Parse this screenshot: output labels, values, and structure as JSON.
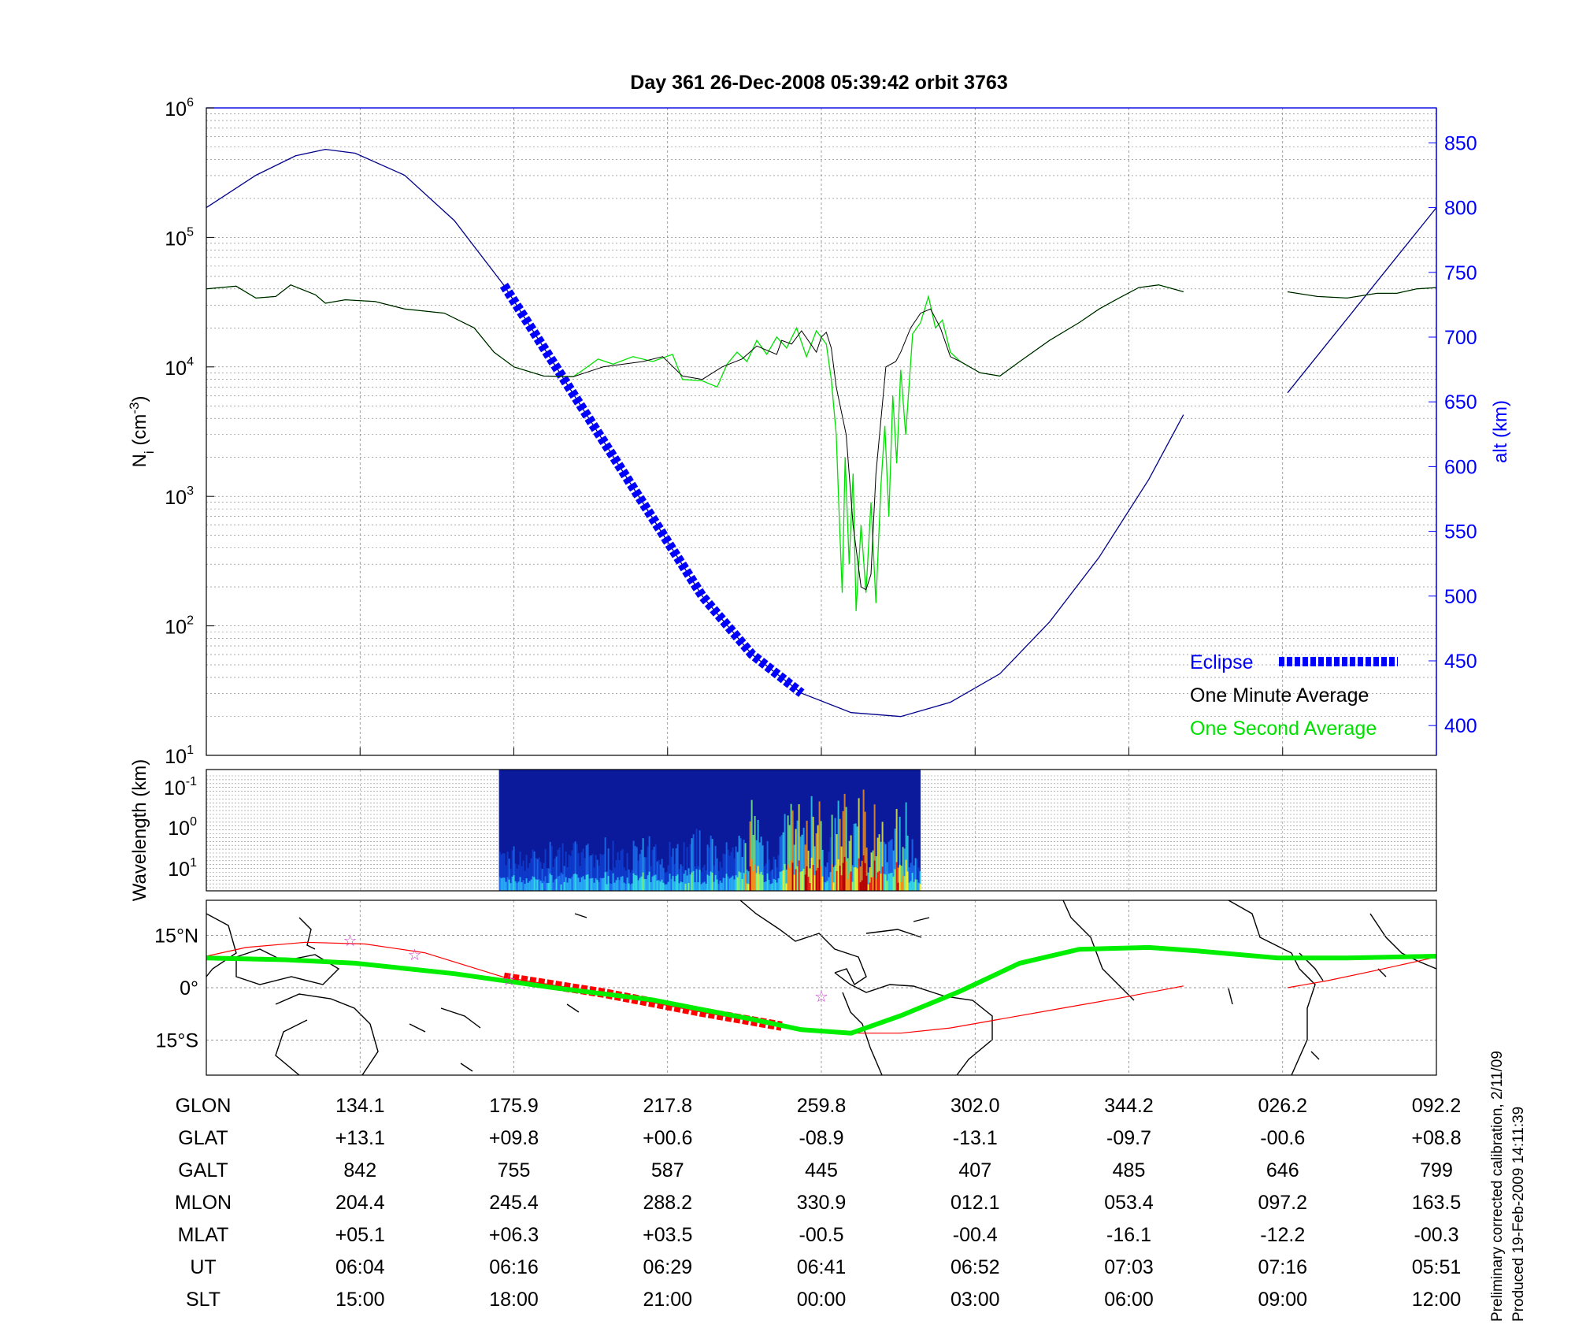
{
  "title": "Day 361  26-Dec-2008 05:39:42   orbit 3763",
  "colors": {
    "eclipse": "#0000ff",
    "alt_line": "#00008b",
    "minute_avg": "#000000",
    "second_avg": "#00e000",
    "track_red": "#ff0000",
    "magnetic_track": "#00ee00",
    "star": "#cc44cc"
  },
  "chart_data": [
    {
      "type": "line",
      "name": "density",
      "ylabel": "N_i (cm^-3)",
      "ylabel_main": "N",
      "ylabel_sub": "i",
      "ylabel_unit": " (cm",
      "ylabel_exp": "-3",
      "ylabel_close": ")",
      "y2label": "alt (km)",
      "yscale": "log",
      "ylim": [
        10,
        1000000
      ],
      "yticks_base": "10",
      "yticks_exp": [
        "1",
        "2",
        "3",
        "4",
        "5",
        "6"
      ],
      "y2lim": [
        377,
        877
      ],
      "y2ticks": [
        "400",
        "450",
        "500",
        "550",
        "600",
        "650",
        "700",
        "750",
        "800",
        "850"
      ],
      "x_ticks_count": 9,
      "grid": true,
      "legend_position": "bottom-right",
      "legend": [
        {
          "label": "Eclipse",
          "color": "#0000ff",
          "style": "dashed-thick"
        },
        {
          "label": "One Minute Average",
          "color": "#000000",
          "style": "none"
        },
        {
          "label": "One Second Average",
          "color": "#00e000",
          "style": "none"
        }
      ],
      "series": [
        {
          "name": "One Minute Average",
          "points": [
            [
              0,
              40000
            ],
            [
              0.03,
              42000
            ],
            [
              0.05,
              34000
            ],
            [
              0.07,
              35000
            ],
            [
              0.085,
              43000
            ],
            [
              0.11,
              36000
            ],
            [
              0.12,
              31000
            ],
            [
              0.14,
              33000
            ],
            [
              0.17,
              32000
            ],
            [
              0.2,
              28000
            ],
            [
              0.24,
              26000
            ],
            [
              0.27,
              20000
            ],
            [
              0.29,
              13000
            ],
            [
              0.31,
              10000
            ],
            [
              0.34,
              8500
            ],
            [
              0.37,
              8400
            ],
            [
              0.4,
              10000
            ],
            [
              0.44,
              11000
            ],
            [
              0.46,
              12000
            ],
            [
              0.48,
              8500
            ],
            [
              0.5,
              8000
            ],
            [
              0.52,
              10000
            ],
            [
              0.54,
              11500
            ],
            [
              0.555,
              14500
            ],
            [
              0.575,
              12500
            ],
            [
              0.58,
              16000
            ],
            [
              0.59,
              15000
            ],
            [
              0.6,
              19000
            ],
            [
              0.615,
              13000
            ],
            [
              0.62,
              17000
            ],
            [
              0.625,
              18500
            ],
            [
              0.63,
              14000
            ],
            [
              0.635,
              7000
            ],
            [
              0.645,
              3000
            ],
            [
              0.652,
              600
            ],
            [
              0.66,
              200
            ],
            [
              0.665,
              190
            ],
            [
              0.67,
              250
            ],
            [
              0.675,
              1500
            ],
            [
              0.685,
              10000
            ],
            [
              0.695,
              11000
            ],
            [
              0.7,
              13000
            ],
            [
              0.71,
              20000
            ],
            [
              0.72,
              26000
            ],
            [
              0.73,
              28000
            ],
            [
              0.74,
              20000
            ],
            [
              0.75,
              12000
            ],
            [
              0.76,
              11000
            ],
            [
              0.78,
              9000
            ],
            [
              0.8,
              8500
            ],
            [
              0.82,
              11000
            ],
            [
              0.85,
              16000
            ],
            [
              0.88,
              22000
            ],
            [
              0.9,
              28000
            ],
            [
              0.92,
              34000
            ],
            [
              0.94,
              41000
            ],
            [
              0.96,
              43000
            ],
            [
              0.98,
              39000
            ],
            [
              0.985,
              38000
            ]
          ],
          "gap_after_x": 0.985,
          "points2": [
            [
              1.09,
              38000
            ],
            [
              1.12,
              35000
            ],
            [
              1.15,
              34000
            ],
            [
              1.18,
              37000
            ],
            [
              1.2,
              37000
            ],
            [
              1.22,
              40000
            ],
            [
              1.24,
              41000
            ]
          ]
        },
        {
          "name": "One Second Average",
          "points": [
            [
              0,
              40000
            ],
            [
              0.03,
              42000
            ],
            [
              0.05,
              34000
            ],
            [
              0.07,
              35000
            ],
            [
              0.085,
              43000
            ],
            [
              0.11,
              36000
            ],
            [
              0.12,
              31000
            ],
            [
              0.14,
              33000
            ],
            [
              0.17,
              32000
            ],
            [
              0.2,
              28000
            ],
            [
              0.24,
              26000
            ],
            [
              0.27,
              20000
            ],
            [
              0.29,
              13000
            ],
            [
              0.31,
              10000
            ],
            [
              0.34,
              8500
            ],
            [
              0.37,
              8400
            ],
            [
              0.38,
              9500
            ],
            [
              0.395,
              11500
            ],
            [
              0.41,
              10500
            ],
            [
              0.43,
              12000
            ],
            [
              0.45,
              11000
            ],
            [
              0.47,
              12500
            ],
            [
              0.48,
              8000
            ],
            [
              0.5,
              7800
            ],
            [
              0.515,
              7000
            ],
            [
              0.525,
              10500
            ],
            [
              0.535,
              13000
            ],
            [
              0.545,
              11000
            ],
            [
              0.555,
              16000
            ],
            [
              0.565,
              12500
            ],
            [
              0.575,
              17000
            ],
            [
              0.585,
              14000
            ],
            [
              0.595,
              20000
            ],
            [
              0.605,
              12000
            ],
            [
              0.615,
              19000
            ],
            [
              0.625,
              15000
            ],
            [
              0.63,
              8000
            ],
            [
              0.635,
              3000
            ],
            [
              0.638,
              700
            ],
            [
              0.641,
              180
            ],
            [
              0.644,
              2000
            ],
            [
              0.648,
              300
            ],
            [
              0.652,
              1500
            ],
            [
              0.655,
              130
            ],
            [
              0.66,
              600
            ],
            [
              0.665,
              180
            ],
            [
              0.67,
              900
            ],
            [
              0.675,
              150
            ],
            [
              0.68,
              1200
            ],
            [
              0.684,
              3500
            ],
            [
              0.688,
              700
            ],
            [
              0.692,
              6000
            ],
            [
              0.696,
              1800
            ],
            [
              0.7,
              9500
            ],
            [
              0.705,
              3000
            ],
            [
              0.712,
              18000
            ],
            [
              0.72,
              22000
            ],
            [
              0.728,
              35000
            ],
            [
              0.735,
              20000
            ],
            [
              0.742,
              23000
            ],
            [
              0.75,
              13000
            ],
            [
              0.76,
              11000
            ],
            [
              0.78,
              9000
            ],
            [
              0.8,
              8500
            ],
            [
              0.82,
              11000
            ],
            [
              0.85,
              16000
            ],
            [
              0.88,
              22000
            ],
            [
              0.9,
              28000
            ],
            [
              0.92,
              34000
            ],
            [
              0.94,
              41000
            ],
            [
              0.96,
              43000
            ],
            [
              0.98,
              39000
            ],
            [
              0.985,
              38000
            ]
          ],
          "gap_after_x": 0.985,
          "points2": [
            [
              1.09,
              38000
            ],
            [
              1.12,
              35000
            ],
            [
              1.15,
              34000
            ],
            [
              1.18,
              37000
            ],
            [
              1.2,
              37000
            ],
            [
              1.22,
              40000
            ],
            [
              1.24,
              41000
            ]
          ]
        },
        {
          "name": "alt",
          "axis": "right",
          "points": [
            [
              0,
              800
            ],
            [
              0.05,
              825
            ],
            [
              0.09,
              840
            ],
            [
              0.12,
              845
            ],
            [
              0.15,
              842
            ],
            [
              0.2,
              825
            ],
            [
              0.25,
              790
            ],
            [
              0.3,
              740
            ],
            [
              0.35,
              680
            ],
            [
              0.4,
              620
            ],
            [
              0.45,
              560
            ],
            [
              0.5,
              500
            ],
            [
              0.55,
              455
            ],
            [
              0.6,
              425
            ],
            [
              0.65,
              410
            ],
            [
              0.7,
              407
            ],
            [
              0.75,
              418
            ],
            [
              0.8,
              440
            ],
            [
              0.85,
              480
            ],
            [
              0.9,
              530
            ],
            [
              0.95,
              590
            ],
            [
              0.985,
              640
            ]
          ],
          "eclipse_from": 0.3,
          "eclipse_to": 0.62
        }
      ]
    },
    {
      "type": "heatmap",
      "name": "spectrogram",
      "ylabel": "Wavelength (km)",
      "yticks_base": "10",
      "yticks_exp": [
        "-1",
        "0",
        "1"
      ],
      "data_from": 0.295,
      "data_to": 0.72
    },
    {
      "type": "line",
      "name": "ground-track",
      "yticks": [
        "15°N",
        "0°",
        "15°S"
      ],
      "ylim": [
        -25,
        25
      ],
      "series": [
        {
          "name": "geographic track",
          "color": "#ff0000",
          "points": [
            [
              0,
              9
            ],
            [
              0.04,
              11.5
            ],
            [
              0.1,
              13
            ],
            [
              0.16,
              12.5
            ],
            [
              0.22,
              10
            ],
            [
              0.3,
              3
            ],
            [
              0.4,
              -1.5
            ],
            [
              0.5,
              -7
            ],
            [
              0.58,
              -11
            ],
            [
              0.63,
              -13
            ],
            [
              0.7,
              -13
            ],
            [
              0.75,
              -11.5
            ],
            [
              0.8,
              -9
            ],
            [
              0.86,
              -6
            ],
            [
              0.92,
              -3
            ],
            [
              0.985,
              0.5
            ]
          ],
          "points2": [
            [
              1.09,
              0
            ],
            [
              1.13,
              2
            ],
            [
              1.18,
              5
            ],
            [
              1.22,
              7.5
            ],
            [
              1.24,
              8.8
            ]
          ],
          "eclipse_from": 0.3,
          "eclipse_to": 0.62
        },
        {
          "name": "magnetic equator track",
          "color": "#00ee00",
          "points": [
            [
              0,
              8.5
            ],
            [
              0.08,
              8
            ],
            [
              0.15,
              7
            ],
            [
              0.25,
              4
            ],
            [
              0.35,
              0
            ],
            [
              0.45,
              -3.5
            ],
            [
              0.55,
              -9
            ],
            [
              0.6,
              -12
            ],
            [
              0.65,
              -13
            ],
            [
              0.7,
              -8
            ],
            [
              0.76,
              -1
            ],
            [
              0.82,
              7
            ],
            [
              0.88,
              11
            ],
            [
              0.95,
              11.5
            ],
            [
              1.0,
              10.5
            ],
            [
              1.08,
              8.5
            ],
            [
              1.15,
              8.5
            ],
            [
              1.24,
              9
            ]
          ]
        }
      ],
      "stars": [
        [
          0.145,
          13.5
        ],
        [
          0.21,
          9.5
        ],
        [
          0.305,
          2.3
        ],
        [
          0.62,
          -2.5
        ]
      ]
    }
  ],
  "table": {
    "row_labels": [
      "GLON",
      "GLAT",
      "GALT",
      "MLON",
      "MLAT",
      "UT",
      "SLT"
    ],
    "columns": [
      [
        "134.1",
        "+13.1",
        "842",
        "204.4",
        "+05.1",
        "06:04",
        "15:00"
      ],
      [
        "175.9",
        "+09.8",
        "755",
        "245.4",
        "+06.3",
        "06:16",
        "18:00"
      ],
      [
        "217.8",
        "+00.6",
        "587",
        "288.2",
        "+03.5",
        "06:29",
        "21:00"
      ],
      [
        "259.8",
        "-08.9",
        "445",
        "330.9",
        "-00.5",
        "06:41",
        "00:00"
      ],
      [
        "302.0",
        "-13.1",
        "407",
        "012.1",
        "-00.4",
        "06:52",
        "03:00"
      ],
      [
        "344.2",
        "-09.7",
        "485",
        "053.4",
        "-16.1",
        "07:03",
        "06:00"
      ],
      [
        "026.2",
        "-00.6",
        "646",
        "097.2",
        "-12.2",
        "07:16",
        "09:00"
      ],
      [
        "092.2",
        "+08.8",
        "799",
        "163.5",
        "-00.3",
        "05:51",
        "12:00"
      ]
    ]
  },
  "footer": {
    "line1": "Preliminary corrected calibration, 2/11/09",
    "line2": "Produced 19-Feb-2009 14:11:39"
  }
}
